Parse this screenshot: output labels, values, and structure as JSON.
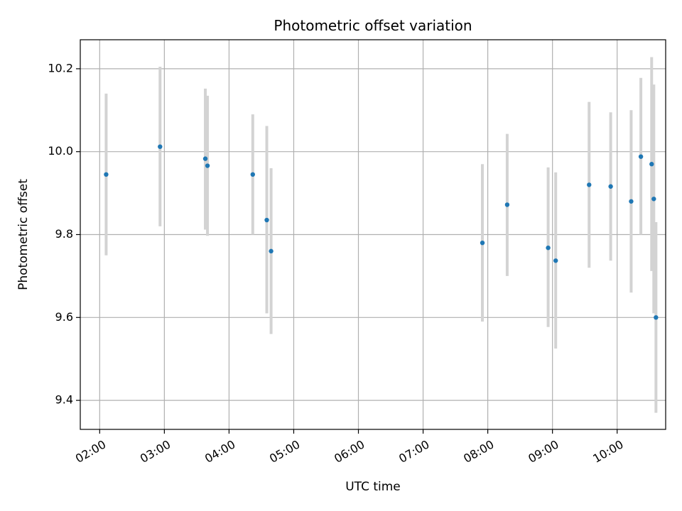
{
  "chart_data": {
    "type": "scatter",
    "title": "Photometric offset variation",
    "xlabel": "UTC time",
    "ylabel": "Photometric offset",
    "xlim": [
      "01:42",
      "10:45"
    ],
    "ylim": [
      9.33,
      10.27
    ],
    "grid": true,
    "x_ticks": [
      "02:00",
      "03:00",
      "04:00",
      "05:00",
      "06:00",
      "07:00",
      "08:00",
      "09:00",
      "10:00"
    ],
    "y_ticks": [
      9.4,
      9.6,
      9.8,
      10.0,
      10.2
    ],
    "colors": {
      "point": "#1f77b4",
      "errorbar": "#d3d3d3",
      "grid": "#b0b0b0"
    },
    "points": [
      {
        "t": "02:06",
        "y": 9.945,
        "lo": 9.75,
        "hi": 10.14
      },
      {
        "t": "02:56",
        "y": 10.012,
        "lo": 9.82,
        "hi": 10.205
      },
      {
        "t": "03:38",
        "y": 9.983,
        "lo": 9.812,
        "hi": 10.152
      },
      {
        "t": "03:40",
        "y": 9.966,
        "lo": 9.797,
        "hi": 10.135
      },
      {
        "t": "04:22",
        "y": 9.945,
        "lo": 9.8,
        "hi": 10.09
      },
      {
        "t": "04:35",
        "y": 9.835,
        "lo": 9.61,
        "hi": 10.062
      },
      {
        "t": "04:39",
        "y": 9.76,
        "lo": 9.56,
        "hi": 9.96
      },
      {
        "t": "07:55",
        "y": 9.78,
        "lo": 9.59,
        "hi": 9.97
      },
      {
        "t": "08:18",
        "y": 9.872,
        "lo": 9.7,
        "hi": 10.043
      },
      {
        "t": "08:56",
        "y": 9.768,
        "lo": 9.577,
        "hi": 9.962
      },
      {
        "t": "09:03",
        "y": 9.737,
        "lo": 9.525,
        "hi": 9.95
      },
      {
        "t": "09:34",
        "y": 9.92,
        "lo": 9.72,
        "hi": 10.12
      },
      {
        "t": "09:54",
        "y": 9.916,
        "lo": 9.737,
        "hi": 10.095
      },
      {
        "t": "10:13",
        "y": 9.88,
        "lo": 9.66,
        "hi": 10.1
      },
      {
        "t": "10:22",
        "y": 9.988,
        "lo": 9.8,
        "hi": 10.178
      },
      {
        "t": "10:32",
        "y": 9.97,
        "lo": 9.712,
        "hi": 10.228
      },
      {
        "t": "10:34",
        "y": 9.886,
        "lo": 9.61,
        "hi": 10.162
      },
      {
        "t": "10:36",
        "y": 9.6,
        "lo": 9.37,
        "hi": 9.83
      }
    ]
  }
}
